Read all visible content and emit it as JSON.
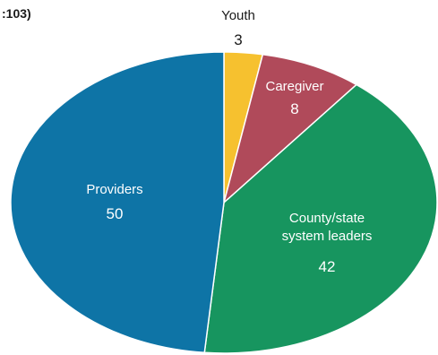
{
  "chart_data": {
    "type": "pie",
    "title_fragment": ":103)",
    "start": "top",
    "direction": "clockwise",
    "slices": [
      {
        "label": "Youth",
        "value": 3,
        "color": "#f6c12f",
        "label_position": "outside"
      },
      {
        "label": "Caregiver",
        "value": 8,
        "color": "#b04a5a",
        "label_position": "inside"
      },
      {
        "label": "County/state system leaders",
        "value": 42,
        "color": "#17955f",
        "label_position": "inside"
      },
      {
        "label": "Providers",
        "value": 50,
        "color": "#0e74a6",
        "label_position": "inside"
      }
    ]
  }
}
